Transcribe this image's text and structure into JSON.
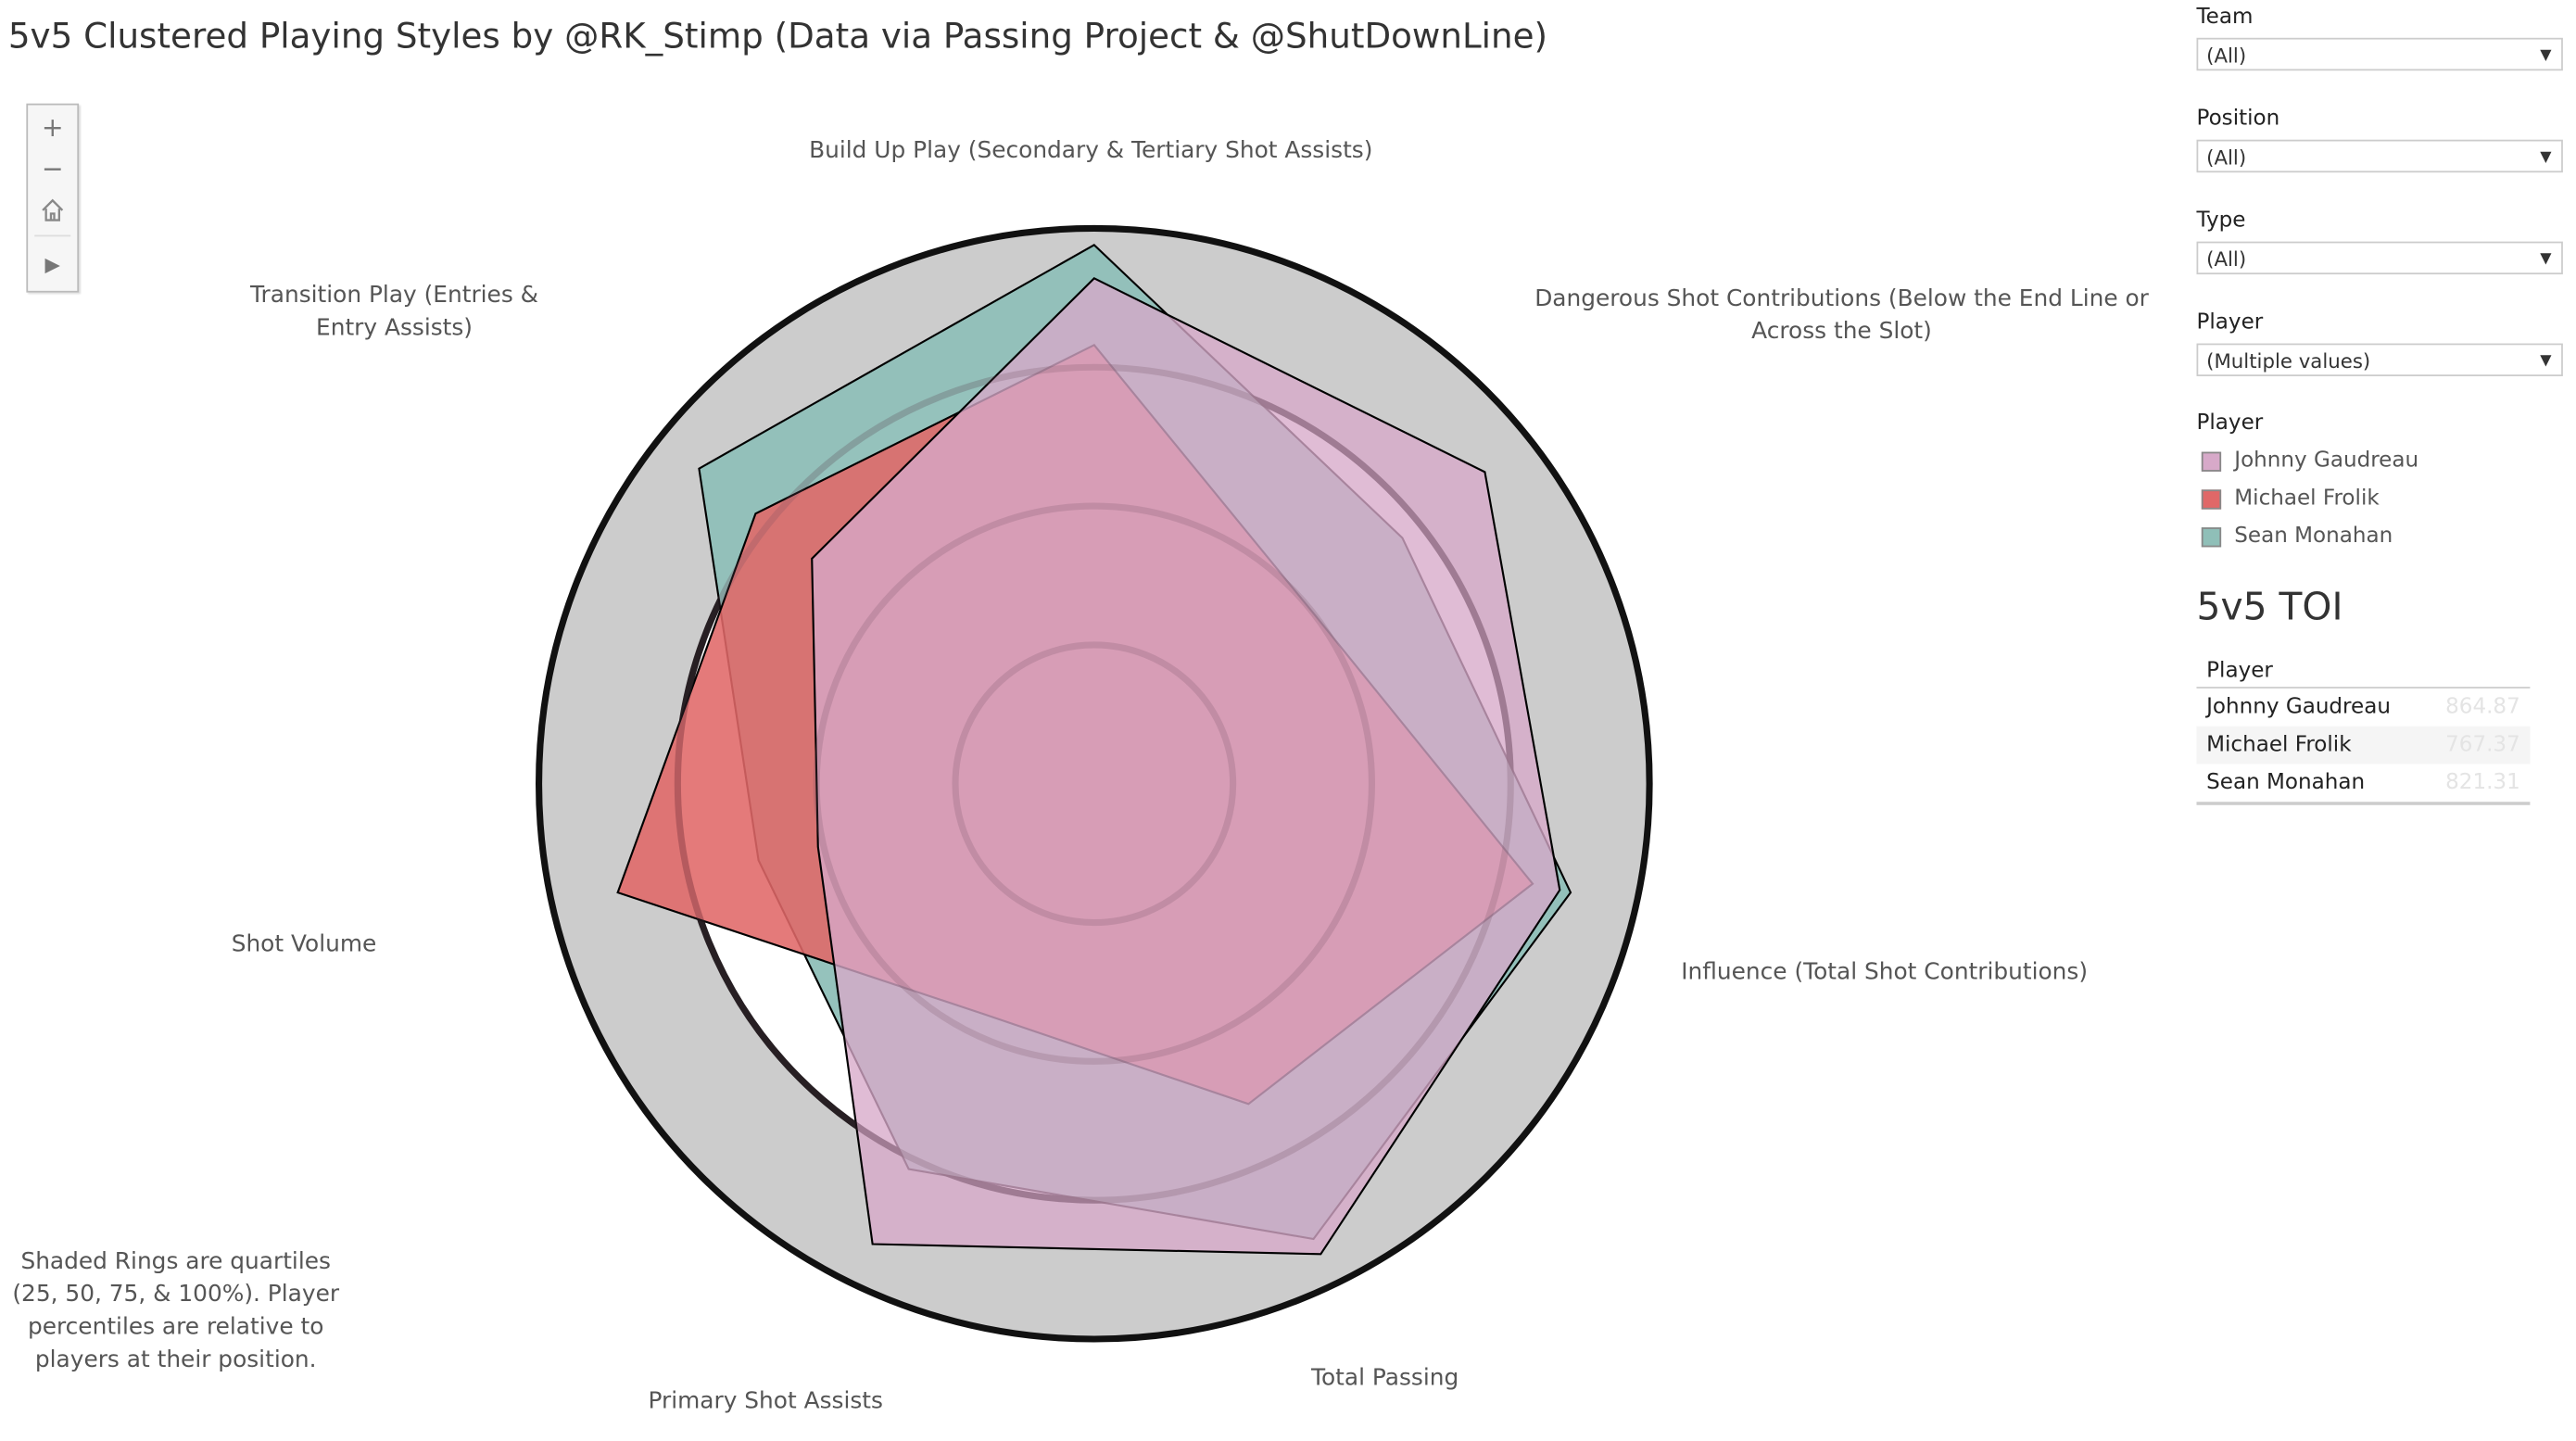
{
  "title": "5v5 Clustered Playing Styles by @RK_Stimp (Data via Passing Project & @ShutDownLine)",
  "note": "Shaded Rings are quartiles (25, 50, 75, & 100%). Player percentiles are relative to players at their position.",
  "zoom_controls": {
    "zoom_in": "+",
    "zoom_out": "−",
    "home": "home-icon",
    "play": "▶"
  },
  "filters": [
    {
      "label": "Team",
      "value": "(All)"
    },
    {
      "label": "Position",
      "value": "(All)"
    },
    {
      "label": "Type",
      "value": "(All)"
    },
    {
      "label": "Player",
      "value": "(Multiple values)"
    }
  ],
  "legend": {
    "title": "Player",
    "items": [
      {
        "name": "Johnny Gaudreau",
        "color": "#d7a9c9"
      },
      {
        "name": "Michael Frolik",
        "color": "#e06868"
      },
      {
        "name": "Sean Monahan",
        "color": "#8fbfb8"
      }
    ]
  },
  "toi": {
    "title": "5v5 TOI",
    "header": "Player",
    "rows": [
      {
        "player": "Johnny Gaudreau",
        "value": "864.87"
      },
      {
        "player": "Michael Frolik",
        "value": "767.37"
      },
      {
        "player": "Sean Monahan",
        "value": "821.31"
      }
    ]
  },
  "chart_data": {
    "type": "radar",
    "title": "5v5 Clustered Playing Styles",
    "axes": [
      "Build Up Play (Secondary & Tertiary Shot Assists)",
      "Dangerous Shot Contributions (Below the End Line or Across the Slot)",
      "Influence (Total Shot Contributions)",
      "Total Passing",
      "Primary Shot Assists",
      "Shot Volume",
      "Transition Play (Entries & Entry Assists)"
    ],
    "axis_lines": [
      [
        "Build Up Play (Secondary & Tertiary Shot Assists)"
      ],
      [
        "Dangerous Shot Contributions (Below the End Line or",
        "Across the Slot)"
      ],
      [
        "Influence (Total Shot Contributions)"
      ],
      [
        "Total Passing"
      ],
      [
        "Primary Shot Assists"
      ],
      [
        "Shot Volume"
      ],
      [
        "Transition Play (Entries &",
        "Entry Assists)"
      ]
    ],
    "rings": [
      0.25,
      0.5,
      0.75,
      1.0
    ],
    "range": [
      0,
      1
    ],
    "series": [
      {
        "name": "Sean Monahan",
        "color": "#8fbfb8",
        "values": [
          0.97,
          0.71,
          0.88,
          0.91,
          0.77,
          0.62,
          0.91
        ]
      },
      {
        "name": "Michael Frolik",
        "color": "#e06868",
        "values": [
          0.79,
          0.5,
          0.81,
          0.64,
          0.46,
          0.88,
          0.78
        ]
      },
      {
        "name": "Johnny Gaudreau",
        "color": "#d7a9c9",
        "values": [
          0.91,
          0.9,
          0.86,
          0.94,
          0.92,
          0.51,
          0.65
        ]
      }
    ]
  }
}
